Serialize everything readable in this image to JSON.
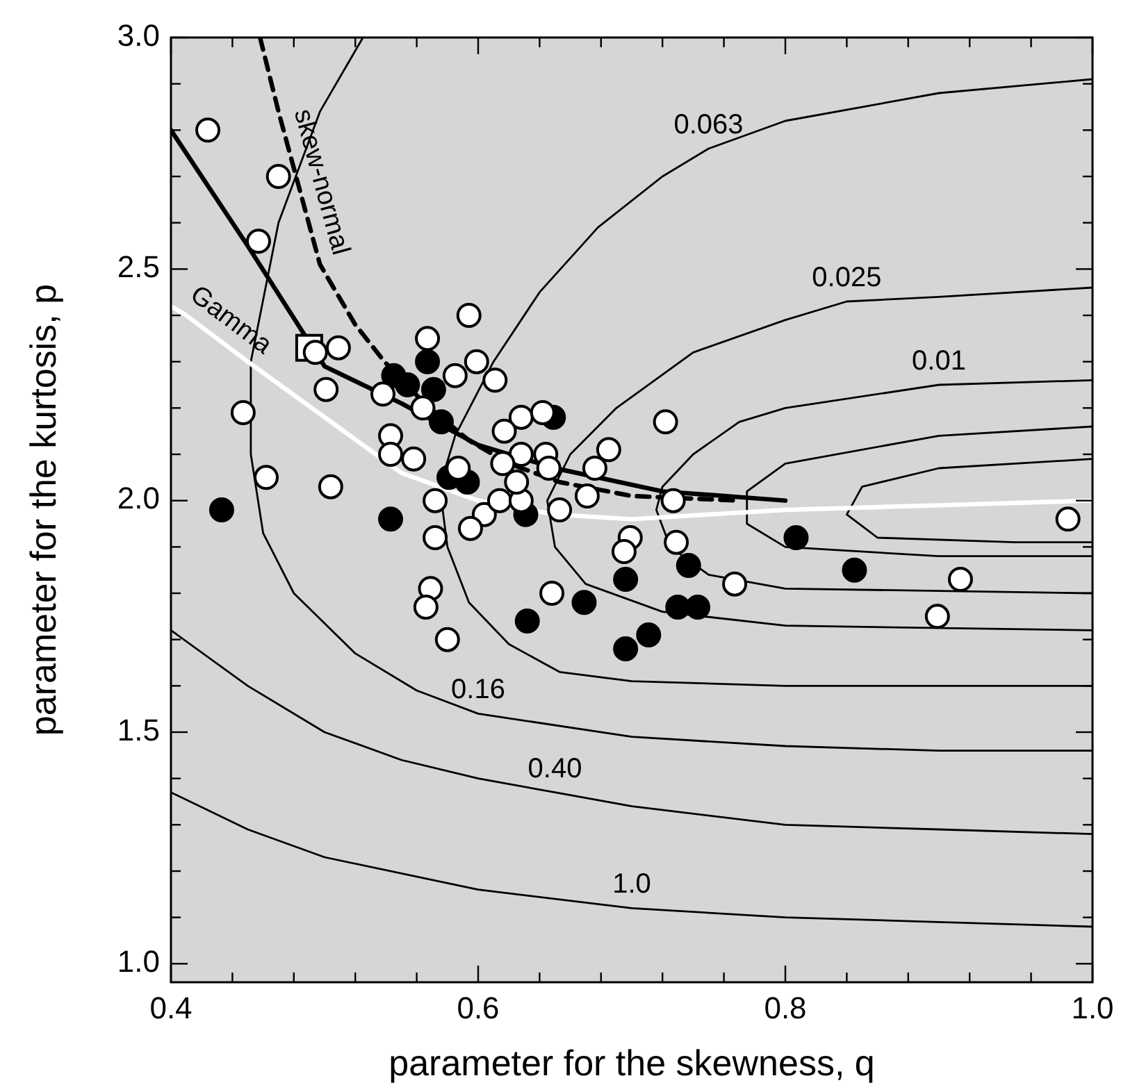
{
  "chart_data": {
    "type": "scatter",
    "xlabel": "parameter for the skewness, q",
    "ylabel": "parameter for the kurtosis, p",
    "xlim": [
      0.4,
      1.0
    ],
    "ylim": [
      0.96,
      3.0
    ],
    "xticks": [
      {
        "value": 0.4,
        "label": "0.4"
      },
      {
        "value": 0.44,
        "label": null
      },
      {
        "value": 0.48,
        "label": null
      },
      {
        "value": 0.52,
        "label": null
      },
      {
        "value": 0.56,
        "label": null
      },
      {
        "value": 0.6,
        "label": "0.6"
      },
      {
        "value": 0.64,
        "label": null
      },
      {
        "value": 0.68,
        "label": null
      },
      {
        "value": 0.72,
        "label": null
      },
      {
        "value": 0.76,
        "label": null
      },
      {
        "value": 0.8,
        "label": "0.8"
      },
      {
        "value": 0.84,
        "label": null
      },
      {
        "value": 0.88,
        "label": null
      },
      {
        "value": 0.92,
        "label": null
      },
      {
        "value": 0.96,
        "label": null
      },
      {
        "value": 1.0,
        "label": "1.0"
      }
    ],
    "yticks": [
      {
        "value": 1.0,
        "label": "1.0"
      },
      {
        "value": 1.1,
        "label": null
      },
      {
        "value": 1.2,
        "label": null
      },
      {
        "value": 1.3,
        "label": null
      },
      {
        "value": 1.4,
        "label": null
      },
      {
        "value": 1.5,
        "label": "1.5"
      },
      {
        "value": 1.6,
        "label": null
      },
      {
        "value": 1.7,
        "label": null
      },
      {
        "value": 1.8,
        "label": null
      },
      {
        "value": 1.9,
        "label": null
      },
      {
        "value": 2.0,
        "label": "2.0"
      },
      {
        "value": 2.1,
        "label": null
      },
      {
        "value": 2.2,
        "label": null
      },
      {
        "value": 2.3,
        "label": null
      },
      {
        "value": 2.4,
        "label": null
      },
      {
        "value": 2.5,
        "label": "2.5"
      },
      {
        "value": 2.6,
        "label": null
      },
      {
        "value": 2.7,
        "label": null
      },
      {
        "value": 2.8,
        "label": null
      },
      {
        "value": 2.9,
        "label": null
      },
      {
        "value": 3.0,
        "label": "3.0"
      }
    ],
    "grid": false,
    "series": [
      {
        "type": "line",
        "color": "#000000",
        "line_style": "solid",
        "x": [
          0.4,
          0.45,
          0.5,
          0.6,
          0.7,
          0.8,
          0.9,
          1.0
        ],
        "values": [
          1.37,
          1.29,
          1.23,
          1.16,
          1.12,
          1.1,
          1.09,
          1.08
        ]
      },
      {
        "type": "line",
        "color": "#000000",
        "line_style": "solid",
        "x": [
          0.4,
          0.45,
          0.5,
          0.55,
          0.6,
          0.65,
          0.7,
          0.8,
          0.9,
          1.0
        ],
        "values": [
          1.72,
          1.6,
          1.5,
          1.44,
          1.4,
          1.37,
          1.34,
          1.3,
          1.29,
          1.28
        ]
      },
      {
        "type": "line",
        "color": "#000000",
        "line_style": "solid",
        "x": [
          0.525,
          0.497,
          0.47,
          0.452,
          0.452,
          0.46,
          0.48,
          0.52,
          0.56,
          0.6,
          0.7,
          0.8,
          0.9,
          1.0
        ],
        "values": [
          3.0,
          2.84,
          2.6,
          2.3,
          2.1,
          1.93,
          1.8,
          1.67,
          1.59,
          1.54,
          1.49,
          1.47,
          1.46,
          1.46
        ]
      },
      {
        "type": "line",
        "color": "#000000",
        "line_style": "solid",
        "x": [
          1.0,
          0.9,
          0.8,
          0.75,
          0.72,
          0.678,
          0.64,
          0.61,
          0.585,
          0.575,
          0.58,
          0.594,
          0.62,
          0.653,
          0.7,
          0.8,
          1.0
        ],
        "values": [
          2.91,
          2.88,
          2.82,
          2.76,
          2.7,
          2.59,
          2.45,
          2.3,
          2.14,
          2.03,
          1.9,
          1.78,
          1.69,
          1.63,
          1.61,
          1.6,
          1.6
        ]
      },
      {
        "type": "line",
        "color": "#000000",
        "line_style": "solid",
        "x": [
          1.0,
          0.9,
          0.84,
          0.8,
          0.74,
          0.69,
          0.66,
          0.645,
          0.65,
          0.67,
          0.72,
          0.8,
          1.0
        ],
        "values": [
          2.46,
          2.44,
          2.43,
          2.39,
          2.32,
          2.2,
          2.1,
          2.0,
          1.9,
          1.82,
          1.76,
          1.73,
          1.72
        ]
      },
      {
        "type": "line",
        "color": "#000000",
        "line_style": "solid",
        "x": [
          1.0,
          0.9,
          0.8,
          0.77,
          0.74,
          0.72,
          0.716,
          0.725,
          0.75,
          0.8,
          1.0
        ],
        "values": [
          2.26,
          2.25,
          2.2,
          2.17,
          2.1,
          2.03,
          1.98,
          1.9,
          1.84,
          1.81,
          1.8
        ]
      },
      {
        "type": "line",
        "color": "#000000",
        "line_style": "solid",
        "x": [
          1.0,
          0.9,
          0.8,
          0.775,
          0.775,
          0.8,
          0.9,
          1.0
        ],
        "values": [
          2.16,
          2.14,
          2.08,
          2.02,
          1.95,
          1.9,
          1.88,
          1.88
        ]
      },
      {
        "type": "line",
        "color": "#000000",
        "line_style": "solid",
        "x": [
          1.0,
          0.9,
          0.85,
          0.84,
          0.86,
          0.95,
          1.0
        ],
        "values": [
          2.09,
          2.07,
          2.03,
          1.97,
          1.92,
          1.91,
          1.91
        ]
      },
      {
        "type": "line",
        "name": "Gamma",
        "color": "#ffffff",
        "line_style": "solid",
        "x": [
          0.4,
          0.41,
          0.45,
          0.5,
          0.55,
          0.6,
          0.65,
          0.7,
          0.8,
          0.9,
          1.0
        ],
        "values": [
          2.42,
          2.4,
          2.3,
          2.18,
          2.06,
          2.0,
          1.97,
          1.96,
          1.98,
          1.99,
          2.0
        ]
      },
      {
        "type": "line",
        "name": "skew-normal",
        "color": "#000000",
        "line_style": "dashed",
        "x": [
          0.458,
          0.47,
          0.497,
          0.52,
          0.539,
          0.565,
          0.594,
          0.62,
          0.653,
          0.7,
          0.77
        ],
        "values": [
          3.0,
          2.84,
          2.51,
          2.38,
          2.3,
          2.21,
          2.13,
          2.08,
          2.04,
          2.01,
          2.0
        ]
      },
      {
        "type": "line",
        "color": "#000000",
        "line_style": "solid",
        "x": [
          0.4,
          0.45,
          0.5,
          0.55,
          0.6,
          0.65,
          0.72,
          0.8
        ],
        "values": [
          2.8,
          2.55,
          2.29,
          2.21,
          2.12,
          2.07,
          2.02,
          2.0
        ]
      },
      {
        "color": "#ffffff",
        "marker": "square",
        "x": [
          0.49
        ],
        "values": [
          2.33
        ]
      },
      {
        "color": "#000000",
        "marker": "circle",
        "x": [
          0.567,
          0.545,
          0.554,
          0.571,
          0.576,
          0.649,
          0.433,
          0.543,
          0.581,
          0.593,
          0.631,
          0.632,
          0.669,
          0.737,
          0.696,
          0.73,
          0.743,
          0.711,
          0.696,
          0.807,
          0.845
        ],
        "values": [
          2.3,
          2.27,
          2.25,
          2.24,
          2.17,
          2.18,
          1.98,
          1.96,
          2.05,
          2.04,
          1.97,
          1.74,
          1.78,
          1.86,
          1.83,
          1.77,
          1.77,
          1.71,
          1.68,
          1.92,
          1.85
        ]
      },
      {
        "color": "#ffffff",
        "marker": "circle",
        "x": [
          0.424,
          0.47,
          0.457,
          0.494,
          0.509,
          0.501,
          0.447,
          0.594,
          0.567,
          0.585,
          0.599,
          0.611,
          0.538,
          0.564,
          0.543,
          0.628,
          0.642,
          0.617,
          0.462,
          0.504,
          0.543,
          0.558,
          0.587,
          0.572,
          0.572,
          0.604,
          0.595,
          0.614,
          0.628,
          0.625,
          0.628,
          0.616,
          0.644,
          0.646,
          0.653,
          0.671,
          0.569,
          0.566,
          0.58,
          0.648,
          0.722,
          0.685,
          0.676,
          0.727,
          0.699,
          0.695,
          0.729,
          0.767,
          0.914,
          0.899,
          0.984
        ],
        "values": [
          2.8,
          2.7,
          2.56,
          2.32,
          2.33,
          2.24,
          2.19,
          2.4,
          2.35,
          2.27,
          2.3,
          2.26,
          2.23,
          2.2,
          2.14,
          2.18,
          2.19,
          2.15,
          2.05,
          2.03,
          2.1,
          2.09,
          2.07,
          2.0,
          1.92,
          1.97,
          1.94,
          2.0,
          2.0,
          2.04,
          2.1,
          2.08,
          2.1,
          2.07,
          1.98,
          2.01,
          1.81,
          1.77,
          1.7,
          1.8,
          2.17,
          2.11,
          2.07,
          2.0,
          1.92,
          1.89,
          1.91,
          1.82,
          1.83,
          1.75,
          1.96
        ]
      }
    ],
    "annotations": [
      {
        "text": "0.063",
        "x": 0.75,
        "y": 2.76
      },
      {
        "text": "0.025",
        "x": 0.84,
        "y": 2.43
      },
      {
        "text": "0.01",
        "x": 0.9,
        "y": 2.25
      },
      {
        "text": "0.16",
        "x": 0.6,
        "y": 1.54
      },
      {
        "text": "0.40",
        "x": 0.65,
        "y": 1.37
      },
      {
        "text": "1.0",
        "x": 0.7,
        "y": 1.12
      }
    ]
  }
}
